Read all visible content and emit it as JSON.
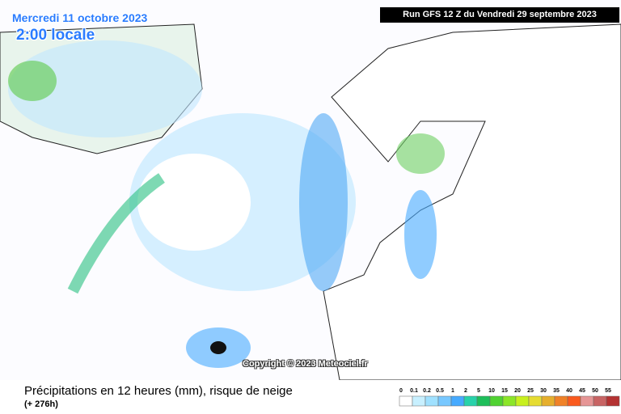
{
  "header": {
    "date": "Mercredi 11 octobre 2023",
    "time": "2:00 locale",
    "run": "Run GFS 12 Z du Vendredi 29 septembre 2023"
  },
  "map": {
    "copyright": "Copyright © 2023 Meteociel.fr"
  },
  "footer": {
    "title": "Précipitations en 12 heures (mm), risque de neige",
    "lead": "(+ 276h)"
  },
  "legend": {
    "labels": [
      "0",
      "0.1",
      "0.2",
      "0.5",
      "1",
      "2",
      "5",
      "10",
      "15",
      "20",
      "25",
      "30",
      "35",
      "40",
      "45",
      "50",
      "55"
    ],
    "colors": [
      "#ffffff",
      "#c8f0ff",
      "#a0e1ff",
      "#78c8ff",
      "#46aaff",
      "#28d2aa",
      "#1ebe5a",
      "#50d232",
      "#8ce628",
      "#c8f01e",
      "#e6dc32",
      "#e6af2d",
      "#f08228",
      "#fa5a1e",
      "#e69696",
      "#c86464",
      "#b43232"
    ]
  }
}
